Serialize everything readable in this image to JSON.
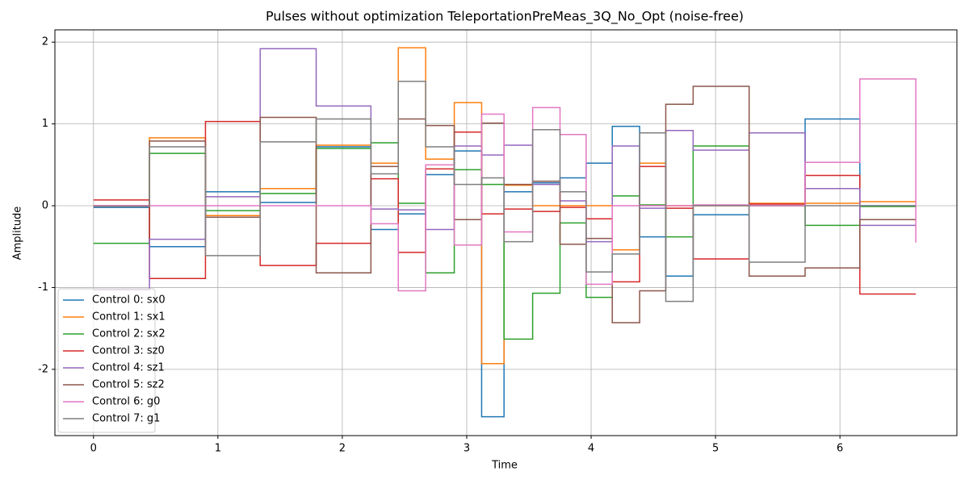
{
  "chart_data": {
    "type": "step",
    "title": "Pulses without optimization TeleportationPreMeas_3Q_No_Opt (noise-free)",
    "xlabel": "Time",
    "ylabel": "Amplitude",
    "x": [
      0,
      0.45,
      0.9,
      1.34,
      1.79,
      2.23,
      2.45,
      2.67,
      2.9,
      3.12,
      3.3,
      3.53,
      3.75,
      3.96,
      4.17,
      4.39,
      4.6,
      4.82,
      5.27,
      5.72,
      6.16,
      6.61
    ],
    "series": [
      {
        "name": "Control 0: sx0",
        "color": "#1f77b4",
        "values": [
          -0.02,
          -0.5,
          0.17,
          0.04,
          0.72,
          -0.29,
          -0.1,
          0.38,
          0.67,
          -2.58,
          0.17,
          0.28,
          0.34,
          0.52,
          0.97,
          -0.38,
          -0.86,
          -0.11,
          0.0,
          1.06,
          0.0,
          0.0
        ]
      },
      {
        "name": "Control 1: sx1",
        "color": "#ff7f0e",
        "values": [
          0.0,
          0.83,
          -0.12,
          0.21,
          0.74,
          0.52,
          1.93,
          0.57,
          1.26,
          -1.93,
          0.25,
          0.0,
          0.0,
          0.0,
          -0.54,
          0.52,
          0.0,
          0.0,
          0.03,
          0.03,
          0.05,
          0.05
        ]
      },
      {
        "name": "Control 2: sx2",
        "color": "#2ca02c",
        "values": [
          -0.46,
          0.64,
          -0.06,
          0.15,
          0.7,
          0.77,
          0.03,
          -0.82,
          0.44,
          0.26,
          -1.63,
          -1.07,
          -0.21,
          -1.12,
          0.12,
          0.01,
          -0.38,
          0.73,
          0.0,
          -0.24,
          -0.01,
          -0.01
        ]
      },
      {
        "name": "Control 3: sz0",
        "color": "#d62728",
        "values": [
          0.07,
          -0.89,
          1.03,
          -0.73,
          -0.46,
          0.33,
          -0.57,
          0.45,
          0.9,
          -0.1,
          -0.04,
          -0.07,
          -0.02,
          -0.16,
          -0.93,
          0.48,
          -0.03,
          -0.65,
          0.02,
          0.37,
          -1.08,
          -1.08
        ]
      },
      {
        "name": "Control 4: sz1",
        "color": "#9467bd",
        "values": [
          -1.03,
          -0.41,
          0.11,
          1.92,
          1.22,
          -0.04,
          -0.05,
          -0.29,
          0.73,
          0.62,
          0.74,
          0.26,
          0.06,
          -0.44,
          0.73,
          -0.03,
          0.92,
          0.68,
          0.89,
          0.21,
          -0.24,
          -0.24
        ]
      },
      {
        "name": "Control 5: sz2",
        "color": "#8c564b",
        "values": [
          0.0,
          0.79,
          -0.14,
          1.08,
          -0.82,
          0.48,
          1.06,
          0.98,
          -0.17,
          1.01,
          0.26,
          0.3,
          -0.47,
          -0.4,
          -1.43,
          -1.04,
          1.24,
          1.46,
          -0.86,
          -0.76,
          -0.17,
          -0.17
        ]
      },
      {
        "name": "Control 6: g0",
        "color": "#e377c2",
        "values": [
          0.0,
          0.0,
          0.0,
          0.0,
          0.0,
          -0.22,
          -1.04,
          0.5,
          -0.48,
          1.12,
          -0.32,
          1.2,
          0.87,
          -0.96,
          0.0,
          0.0,
          0.0,
          0.01,
          0.0,
          0.53,
          1.55,
          -0.45
        ]
      },
      {
        "name": "Control 7: g1",
        "color": "#7f7f7f",
        "values": [
          -0.01,
          0.72,
          -0.61,
          0.78,
          1.06,
          0.39,
          1.52,
          0.72,
          0.26,
          0.34,
          -0.44,
          0.93,
          0.17,
          -0.81,
          -0.59,
          0.89,
          -1.17,
          0.0,
          -0.69,
          0.0,
          0.0,
          0.0
        ]
      }
    ],
    "xlim": [
      -0.31,
      6.94
    ],
    "ylim": [
      -2.81,
      2.15
    ],
    "xticks": [
      0,
      1,
      2,
      3,
      4,
      5,
      6
    ],
    "yticks": [
      -2,
      -1,
      0,
      1,
      2
    ],
    "grid": true,
    "legend": "lower left"
  }
}
